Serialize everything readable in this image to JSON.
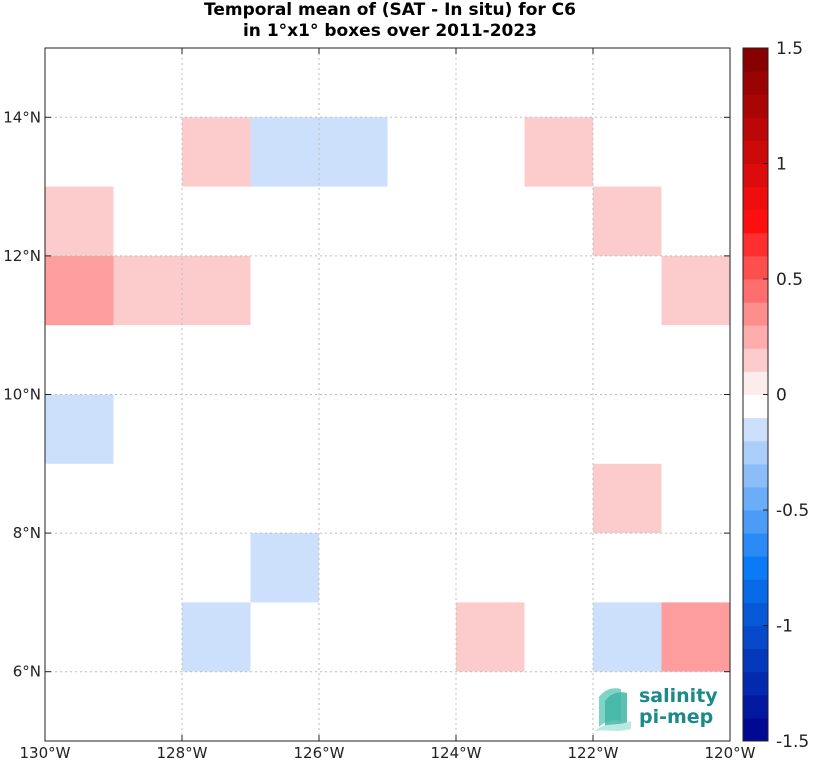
{
  "chart_data": {
    "type": "heatmap",
    "title_line1": "Temporal mean of (SAT - In situ) for C6",
    "title_line2": "in 1°x1° boxes over 2011-2023",
    "lon_range": [
      -130,
      -120
    ],
    "lat_range": [
      5,
      15
    ],
    "x_ticks": [
      {
        "value": -130,
        "label": "130°W"
      },
      {
        "value": -128,
        "label": "128°W"
      },
      {
        "value": -126,
        "label": "126°W"
      },
      {
        "value": -124,
        "label": "124°W"
      },
      {
        "value": -122,
        "label": "122°W"
      },
      {
        "value": -120,
        "label": "120°W"
      }
    ],
    "y_ticks": [
      {
        "value": 6,
        "label": "6°N"
      },
      {
        "value": 8,
        "label": "8°N"
      },
      {
        "value": 10,
        "label": "10°N"
      },
      {
        "value": 12,
        "label": "12°N"
      },
      {
        "value": 14,
        "label": "14°N"
      }
    ],
    "grid": true,
    "cells": [
      {
        "lon": -128,
        "lat": 13,
        "value": 0.15
      },
      {
        "lon": -127,
        "lat": 13,
        "value": -0.15
      },
      {
        "lon": -126,
        "lat": 13,
        "value": -0.15
      },
      {
        "lon": -123,
        "lat": 13,
        "value": 0.15
      },
      {
        "lon": -130,
        "lat": 12,
        "value": 0.15
      },
      {
        "lon": -122,
        "lat": 12,
        "value": 0.15
      },
      {
        "lon": -130,
        "lat": 11,
        "value": 0.3
      },
      {
        "lon": -129,
        "lat": 11,
        "value": 0.15
      },
      {
        "lon": -128,
        "lat": 11,
        "value": 0.15
      },
      {
        "lon": -121,
        "lat": 11,
        "value": 0.15
      },
      {
        "lon": -130,
        "lat": 9,
        "value": -0.15
      },
      {
        "lon": -122,
        "lat": 8,
        "value": 0.15
      },
      {
        "lon": -127,
        "lat": 7,
        "value": -0.15
      },
      {
        "lon": -128,
        "lat": 6,
        "value": -0.15
      },
      {
        "lon": -124,
        "lat": 6,
        "value": 0.15
      },
      {
        "lon": -122,
        "lat": 6,
        "value": -0.15
      },
      {
        "lon": -121,
        "lat": 6,
        "value": 0.3
      }
    ],
    "colorbar": {
      "range": [
        -1.5,
        1.5
      ],
      "step": 0.1,
      "ticks": [
        {
          "value": 1.5,
          "label": "1.5"
        },
        {
          "value": 1,
          "label": "1"
        },
        {
          "value": 0.5,
          "label": "0.5"
        },
        {
          "value": 0,
          "label": "0"
        },
        {
          "value": -0.5,
          "label": "-0.5"
        },
        {
          "value": -1,
          "label": "-1"
        },
        {
          "value": -1.5,
          "label": "-1.5"
        }
      ],
      "colors": {
        "negative_extreme": "#00008a",
        "negative_mid": "#0a7af5",
        "negative_light": "#dce9fb",
        "zero": "#ffffff",
        "positive_light": "#fcdcdc",
        "positive_mid": "#ff1010",
        "positive_extreme": "#7f0000"
      }
    }
  },
  "logo": {
    "line1": "salinity",
    "line2": "pi-mep"
  }
}
